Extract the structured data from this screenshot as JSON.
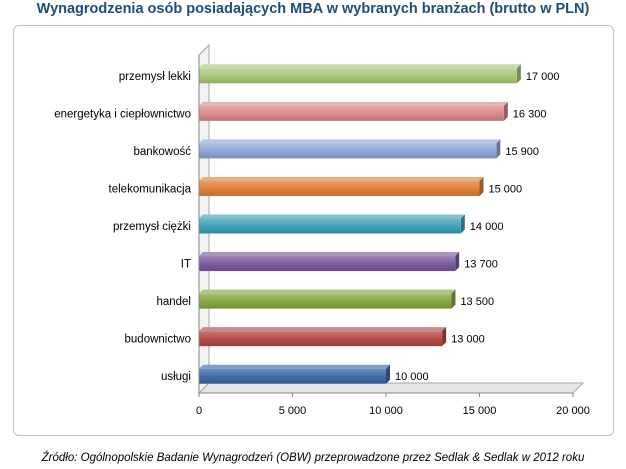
{
  "chart_data": {
    "type": "bar",
    "orientation": "horizontal",
    "title": "Wynagrodzenia osób posiadających MBA w wybranych branżach (brutto w PLN)",
    "categories": [
      "przemysł lekki",
      "energetyka i ciepłownictwo",
      "bankowość",
      "telekomunikacja",
      "przemysł ciężki",
      "IT",
      "handel",
      "budownictwo",
      "usługi"
    ],
    "values": [
      17000,
      16300,
      15900,
      15000,
      14000,
      13700,
      13500,
      13000,
      10000
    ],
    "value_labels": [
      "17 000",
      "16 300",
      "15 900",
      "15 000",
      "14 000",
      "13 700",
      "13 500",
      "13 000",
      "10 000"
    ],
    "colors": [
      "#A9C97A",
      "#D98A8A",
      "#8EA6D6",
      "#E0803A",
      "#3FA1B8",
      "#7B5BA0",
      "#86A845",
      "#B24A46",
      "#3D6BA6"
    ],
    "xlim": [
      0,
      20000
    ],
    "xticks": [
      0,
      5000,
      10000,
      15000,
      20000
    ],
    "xtick_labels": [
      "0",
      "5 000",
      "10 000",
      "15 000",
      "20 000"
    ],
    "xlabel": "",
    "ylabel": "",
    "grid": false,
    "legend": "none"
  },
  "source_note": "Źródło: Ogólnopolskie Badanie Wynagrodzeń (OBW) przeprowadzone przez Sedlak & Sedlak w 2012 roku"
}
